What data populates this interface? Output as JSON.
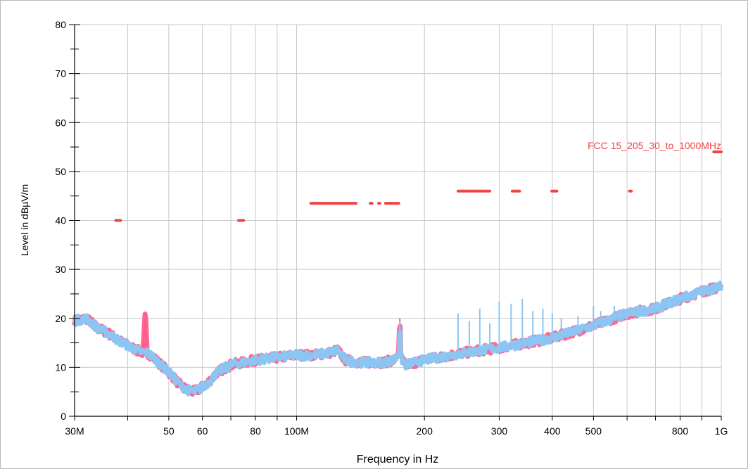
{
  "chart_data": {
    "type": "line",
    "title": "",
    "xlabel": "Frequency in Hz",
    "ylabel": "Level in dBµV/m",
    "x_scale": "log",
    "xlim": [
      30000000,
      1000000000
    ],
    "ylim": [
      0,
      80
    ],
    "grid": true,
    "x_ticks": [
      {
        "value": 30000000,
        "label": "30M"
      },
      {
        "value": 50000000,
        "label": "50"
      },
      {
        "value": 60000000,
        "label": "60"
      },
      {
        "value": 80000000,
        "label": "80"
      },
      {
        "value": 100000000,
        "label": "100M"
      },
      {
        "value": 200000000,
        "label": "200"
      },
      {
        "value": 300000000,
        "label": "300"
      },
      {
        "value": 400000000,
        "label": "400"
      },
      {
        "value": 500000000,
        "label": "500"
      },
      {
        "value": 800000000,
        "label": "800"
      },
      {
        "value": 1000000000,
        "label": "1G"
      }
    ],
    "x_grid_values": [
      30000000,
      40000000,
      50000000,
      60000000,
      70000000,
      80000000,
      90000000,
      100000000,
      200000000,
      300000000,
      400000000,
      500000000,
      600000000,
      700000000,
      800000000,
      900000000,
      1000000000
    ],
    "y_ticks": [
      {
        "value": 0,
        "label": "0"
      },
      {
        "value": 10,
        "label": "10"
      },
      {
        "value": 20,
        "label": "20"
      },
      {
        "value": 30,
        "label": "30"
      },
      {
        "value": 40,
        "label": "40"
      },
      {
        "value": 50,
        "label": "50"
      },
      {
        "value": 60,
        "label": "60"
      },
      {
        "value": 70,
        "label": "70"
      },
      {
        "value": 80,
        "label": "80"
      }
    ],
    "limit_line": {
      "name": "FCC 15_205_30_to_1000MHz",
      "color": "#ee4444",
      "segments": [
        {
          "x": [
            37500000,
            38500000
          ],
          "y": 40
        },
        {
          "x": [
            73000000,
            75000000
          ],
          "y": 40
        },
        {
          "x": [
            108000000,
            138000000
          ],
          "y": 43.5
        },
        {
          "x": [
            149000000,
            150500000
          ],
          "y": 43.5
        },
        {
          "x": [
            156000000,
            157000000
          ],
          "y": 43.5
        },
        {
          "x": [
            162000000,
            174000000
          ],
          "y": 43.5
        },
        {
          "x": [
            240000000,
            285000000
          ],
          "y": 46
        },
        {
          "x": [
            322000000,
            335000000
          ],
          "y": 46
        },
        {
          "x": [
            399000000,
            410000000
          ],
          "y": 46
        },
        {
          "x": [
            608000000,
            614000000
          ],
          "y": 46
        },
        {
          "x": [
            960000000,
            1000000000
          ],
          "y": 54
        }
      ]
    },
    "series": [
      {
        "color": "#ff5e8a",
        "x": [
          30000000,
          32000000,
          34000000,
          36000000,
          38000000,
          40000000,
          42000000,
          43500000,
          44000000,
          44500000,
          46000000,
          50000000,
          53000000,
          55000000,
          57000000,
          59000000,
          62000000,
          65000000,
          70000000,
          75000000,
          80000000,
          90000000,
          100000000,
          110000000,
          120000000,
          125000000,
          130000000,
          140000000,
          150000000,
          160000000,
          170000000,
          174000000,
          175000000,
          176000000,
          180000000,
          190000000,
          200000000,
          250000000,
          300000000,
          400000000,
          500000000,
          600000000,
          700000000,
          800000000,
          900000000,
          1000000000
        ],
        "y": [
          19.5,
          20,
          18,
          17,
          15.5,
          14.5,
          13.5,
          13,
          21,
          13,
          12,
          9,
          6.5,
          5.5,
          5,
          5.5,
          7,
          9,
          10.5,
          11,
          11.5,
          12,
          12.5,
          12.5,
          13,
          13.5,
          11.5,
          11,
          11,
          11,
          11.5,
          13,
          20,
          12,
          10.5,
          11,
          11.5,
          13,
          14,
          16,
          18.5,
          21,
          22,
          24,
          25.5,
          26.5
        ]
      },
      {
        "color": "#8cc4f2",
        "x": [
          30000000,
          32000000,
          34000000,
          36000000,
          38000000,
          40000000,
          42000000,
          43500000,
          44500000,
          46000000,
          50000000,
          53000000,
          55000000,
          57000000,
          59000000,
          62000000,
          65000000,
          70000000,
          75000000,
          80000000,
          90000000,
          100000000,
          110000000,
          120000000,
          125000000,
          130000000,
          140000000,
          150000000,
          160000000,
          170000000,
          174000000,
          175000000,
          176000000,
          180000000,
          190000000,
          200000000,
          250000000,
          300000000,
          400000000,
          500000000,
          600000000,
          700000000,
          800000000,
          900000000,
          1000000000
        ],
        "y": [
          19.5,
          20,
          18,
          17,
          15.5,
          14.5,
          13.5,
          13,
          13,
          12,
          9,
          6.5,
          5.5,
          5,
          5.5,
          7,
          9,
          10.5,
          11,
          11.5,
          12,
          12.5,
          12.5,
          13,
          13.5,
          11.5,
          11,
          11,
          11,
          11.5,
          13,
          19.5,
          12,
          10.5,
          11,
          11.5,
          13,
          14,
          16,
          18.5,
          21,
          22,
          24,
          25.5,
          26.5
        ],
        "spikes": [
          {
            "x": 240000000,
            "y": 21
          },
          {
            "x": 255000000,
            "y": 19.5
          },
          {
            "x": 270000000,
            "y": 22
          },
          {
            "x": 285000000,
            "y": 19
          },
          {
            "x": 300000000,
            "y": 23.5
          },
          {
            "x": 320000000,
            "y": 23
          },
          {
            "x": 340000000,
            "y": 24
          },
          {
            "x": 360000000,
            "y": 21.5
          },
          {
            "x": 380000000,
            "y": 22
          },
          {
            "x": 400000000,
            "y": 21
          },
          {
            "x": 420000000,
            "y": 20
          },
          {
            "x": 460000000,
            "y": 20.5
          },
          {
            "x": 500000000,
            "y": 22.5
          },
          {
            "x": 520000000,
            "y": 21.5
          },
          {
            "x": 560000000,
            "y": 22.5
          },
          {
            "x": 600000000,
            "y": 22
          }
        ]
      }
    ]
  }
}
